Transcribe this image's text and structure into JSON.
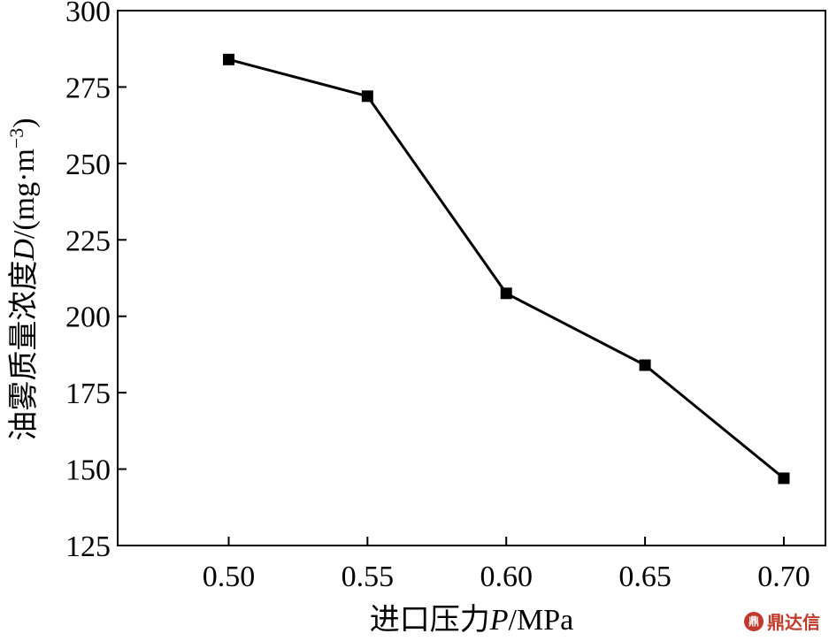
{
  "chart_data": {
    "type": "line",
    "x": [
      0.5,
      0.55,
      0.6,
      0.65,
      0.7
    ],
    "series": [
      {
        "values": [
          284,
          272,
          207.5,
          184,
          147
        ]
      }
    ],
    "x_ticks": [
      "0.50",
      "0.55",
      "0.60",
      "0.65",
      "0.70"
    ],
    "y_ticks": [
      "125",
      "150",
      "175",
      "200",
      "225",
      "250",
      "275",
      "300"
    ],
    "xlim": [
      0.46,
      0.715
    ],
    "ylim": [
      125,
      300
    ],
    "xlabel": {
      "cn": "进口压力",
      "var": "P",
      "unit": "/MPa"
    },
    "ylabel": {
      "cn": "油雾质量浓度",
      "var": "D",
      "unit": "/(mg·m",
      "exp": "−3",
      "close": ")"
    },
    "marker": "square",
    "line_color": "#000000",
    "grid": false
  },
  "watermark": {
    "icon": "鼎",
    "text": "鼎达信"
  }
}
